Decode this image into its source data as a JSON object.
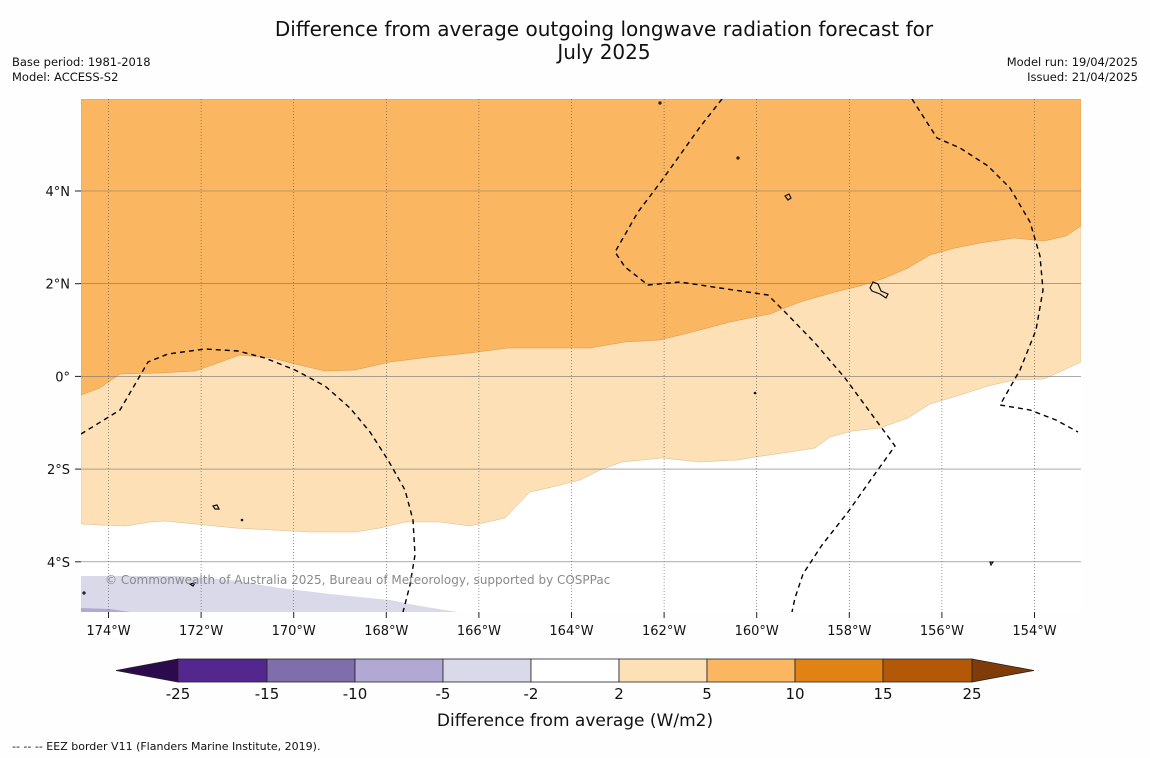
{
  "header": {
    "title_line1": "Difference from average outgoing longwave radiation forecast for",
    "title_line2": "July 2025",
    "base_period": "Base period: 1981-2018",
    "model": "Model: ACCESS-S2",
    "model_run": "Model run: 19/04/2025",
    "issued": "Issued: 21/04/2025"
  },
  "map": {
    "lon_ticks": [
      "174°W",
      "172°W",
      "170°W",
      "168°W",
      "166°W",
      "164°W",
      "162°W",
      "160°W",
      "158°W",
      "156°W",
      "154°W"
    ],
    "lat_ticks": [
      "4°N",
      "2°N",
      "0°",
      "2°S",
      "4°S"
    ],
    "copyright": "© Commonwealth of Australia 2025, Bureau of Meteorology, supported by COSPPac"
  },
  "colorbar": {
    "label": "Difference from average (W/m2)",
    "tick_labels": [
      "-25",
      "-15",
      "-10",
      "-5",
      "-2",
      "2",
      "5",
      "10",
      "15",
      "25"
    ],
    "colors": {
      "below_min": "#2d0a4e",
      "bins": [
        "#54278f",
        "#7e6eac",
        "#b1a9d3",
        "#d9d9ea",
        "#ffffff",
        "#fde0b6",
        "#fbb662",
        "#e08214",
        "#b35806"
      ],
      "above_max": "#7f3b08"
    }
  },
  "footer": {
    "eez_note": "--  --  -- EEZ border V11 (Flanders Marine Institute, 2019)."
  }
}
